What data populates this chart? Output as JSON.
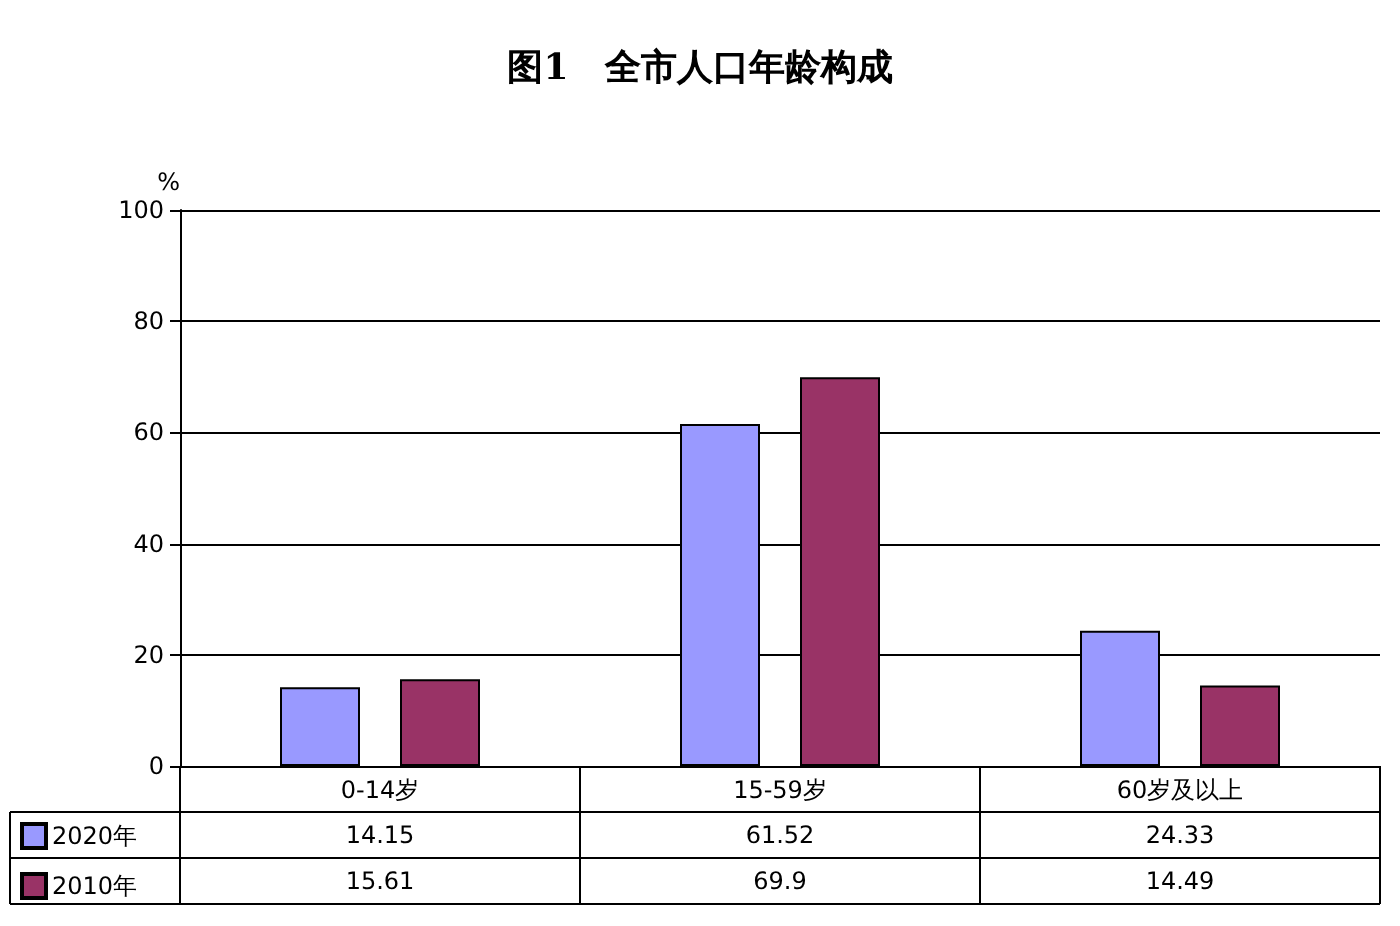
{
  "chart_data": {
    "type": "bar",
    "title": "图1　全市人口年龄构成",
    "ylabel": "%",
    "categories": [
      "0-14岁",
      "15-59岁",
      "60岁及以上"
    ],
    "series": [
      {
        "name": "2020年",
        "color": "#9999ff",
        "values": [
          14.15,
          61.52,
          24.33
        ]
      },
      {
        "name": "2010年",
        "color": "#993366",
        "values": [
          15.61,
          69.9,
          14.49
        ]
      }
    ],
    "ylim": [
      0,
      100
    ],
    "yticks": [
      0,
      20,
      40,
      60,
      80,
      100
    ],
    "grid": "y",
    "legend": "bottom",
    "data_labels": true
  }
}
